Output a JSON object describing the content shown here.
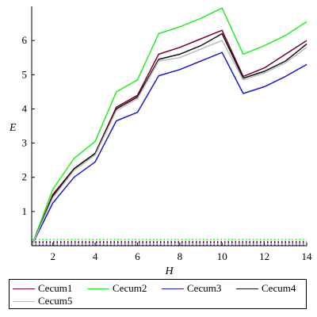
{
  "chart_data": {
    "type": "line",
    "xlabel": "H",
    "ylabel": "E",
    "xlim": [
      1,
      14
    ],
    "ylim": [
      0,
      7
    ],
    "xticks": [
      2,
      4,
      6,
      8,
      10,
      12,
      14
    ],
    "yticks": [
      1,
      2,
      3,
      4,
      5,
      6
    ],
    "grid": false,
    "legend_position": "bottom",
    "x": [
      1,
      2,
      3,
      4,
      5,
      6,
      7,
      8,
      9,
      10,
      11,
      12,
      13,
      14
    ],
    "series": [
      {
        "name": "Cecum1",
        "color": "#800020",
        "values": [
          0,
          1.5,
          2.25,
          2.7,
          4.05,
          4.4,
          5.6,
          5.8,
          6.05,
          6.3,
          4.95,
          5.2,
          5.6,
          6.0
        ]
      },
      {
        "name": "Cecum2",
        "color": "#22ee22",
        "values": [
          0,
          1.65,
          2.55,
          3.05,
          4.5,
          4.85,
          6.2,
          6.4,
          6.65,
          6.95,
          5.6,
          5.85,
          6.15,
          6.55
        ]
      },
      {
        "name": "Cecum3",
        "color": "#1a1acc",
        "values": [
          0,
          1.25,
          2.0,
          2.45,
          3.65,
          3.9,
          4.97,
          5.15,
          5.4,
          5.65,
          4.45,
          4.65,
          4.95,
          5.3
        ]
      },
      {
        "name": "Cecum4",
        "color": "#111111",
        "values": [
          0,
          1.45,
          2.25,
          2.7,
          4.0,
          4.35,
          5.45,
          5.6,
          5.85,
          6.2,
          4.9,
          5.1,
          5.4,
          5.9
        ]
      },
      {
        "name": "Cecum5",
        "color": "#bbbbbb",
        "values": [
          0,
          1.4,
          2.2,
          2.65,
          3.95,
          4.3,
          5.4,
          5.5,
          5.75,
          6.0,
          4.85,
          5.05,
          5.35,
          5.8
        ]
      }
    ],
    "baselines": [
      {
        "color": "#22ee22",
        "value": 0.18
      },
      {
        "color": "#800020",
        "value": 0.12
      },
      {
        "color": "#111111",
        "value": 0.08
      },
      {
        "color": "#1a1acc",
        "value": 0.02
      }
    ]
  }
}
